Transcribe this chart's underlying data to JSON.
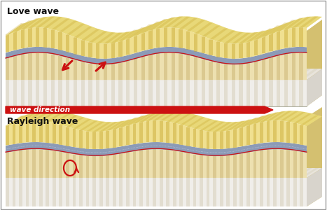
{
  "bg_color": "#ffffff",
  "title_love": "Love wave",
  "title_rayleigh": "Rayleigh wave",
  "wave_direction_label": "wave direction",
  "title_fontsize": 9,
  "label_fontsize": 8,
  "sandy_light": "#f5e8a0",
  "sandy_mid": "#e8d070",
  "sandy_stripe": "#c8a830",
  "blue_layer": "#8899bb",
  "white_layer": "#f0eeea",
  "cream_layer": "#ede0c0",
  "cream_stripe": "#d0c090",
  "tan_layer": "#ddd0a0",
  "red_color": "#cc1111",
  "arrow_red": "#cc1111",
  "border_color": "#aaaaaa",
  "side_sandy": "#d4b840",
  "side_cream": "#c8c0a0"
}
